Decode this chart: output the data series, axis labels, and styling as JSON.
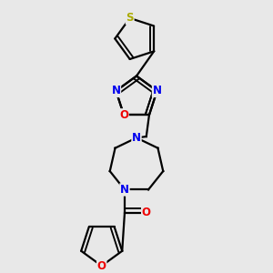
{
  "bg_color": "#e8e8e8",
  "atom_colors": {
    "S": "#aaaa00",
    "N": "#0000ee",
    "O": "#ee0000",
    "C": "#000000"
  },
  "line_color": "#000000",
  "line_width": 1.6,
  "fig_size": [
    3.0,
    3.0
  ],
  "dpi": 100
}
